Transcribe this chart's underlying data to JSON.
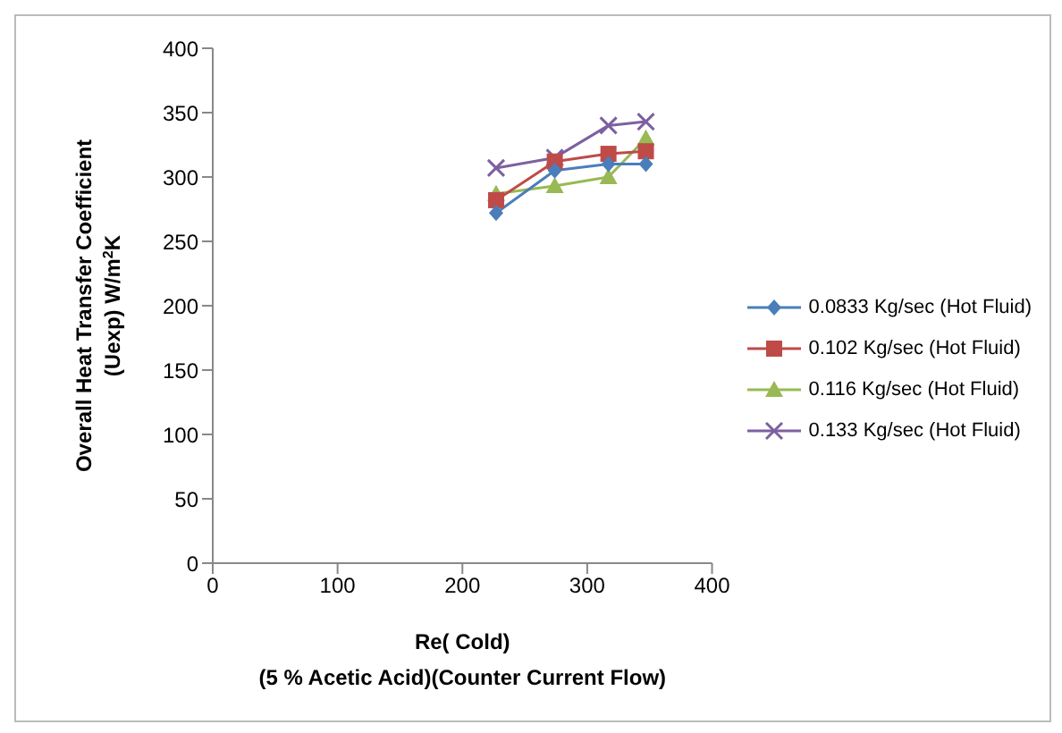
{
  "chart_data": {
    "type": "line",
    "xlabel": "Re( Cold)\n(5 % Acetic Acid)(Counter Current Flow)",
    "ylabel": "Overall Heat Transfer Coefficient\n(Uexp) W/m$^{2}$K",
    "x": [
      227,
      274,
      317,
      347
    ],
    "xlim": [
      0,
      400
    ],
    "xticks": [
      0,
      100,
      200,
      300,
      400
    ],
    "ylim": [
      0,
      400
    ],
    "yticks": [
      0,
      50,
      100,
      150,
      200,
      250,
      300,
      350,
      400
    ],
    "grid": false,
    "legend": "right",
    "series": [
      {
        "name": "0.0833 Kg/sec (Hot Fluid)",
        "color": "#4a7ebb",
        "marker": "diamond",
        "values": [
          272,
          305,
          310,
          310
        ]
      },
      {
        "name": "0.102 Kg/sec (Hot Fluid)",
        "color": "#be4b48",
        "marker": "square",
        "values": [
          282,
          312,
          318,
          320
        ]
      },
      {
        "name": "0.116 Kg/sec (Hot Fluid)",
        "color": "#98b954",
        "marker": "triangle",
        "values": [
          287,
          293,
          300,
          330
        ]
      },
      {
        "name": "0.133 Kg/sec (Hot Fluid)",
        "color": "#7d60a0",
        "marker": "cross",
        "values": [
          307,
          315,
          340,
          343
        ]
      }
    ]
  }
}
